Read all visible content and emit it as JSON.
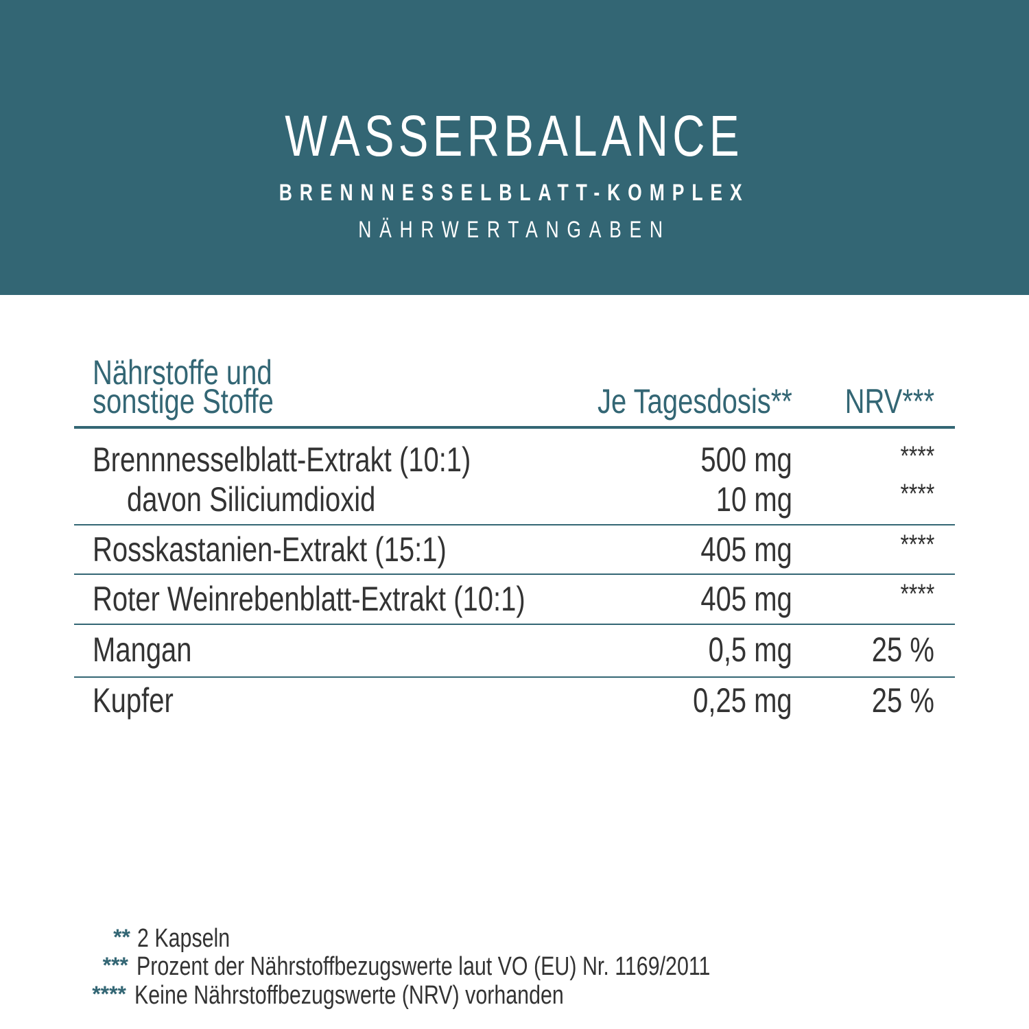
{
  "header": {
    "title": "WASSERBALANCE",
    "subtitle": "BRENNNESSELBLATT-KOMPLEX",
    "section": "NÄHRWERTANGABEN",
    "background_color": "#336674"
  },
  "table": {
    "columns": [
      "Nährstoffe und",
      "sonstige Stoffe",
      "Je Tagesdosis**",
      "NRV***"
    ],
    "rows": [
      {
        "name": "Brennnesselblatt-Extrakt (10:1)",
        "dose": "500 mg",
        "nrv": "****"
      },
      {
        "name": "davon Siliciumdioxid",
        "dose": "10 mg",
        "nrv": "****"
      },
      {
        "name": "Rosskastanien-Extrakt (15:1)",
        "dose": "405 mg",
        "nrv": "****"
      },
      {
        "name": "Roter Weinrebenblatt-Extrakt (10:1)",
        "dose": "405 mg",
        "nrv": "****"
      },
      {
        "name": "Mangan",
        "dose": "0,5 mg",
        "nrv": "25 %"
      },
      {
        "name": "Kupfer",
        "dose": "0,25 mg",
        "nrv": "25 %"
      }
    ]
  },
  "footnotes": [
    {
      "mark": "**",
      "text": "2 Kapseln"
    },
    {
      "mark": "***",
      "text": "Prozent der Nährstoffbezugswerte laut VO (EU) Nr. 1169/2011"
    },
    {
      "mark": "****",
      "text": "Keine Nährstoffbezugswerte (NRV) vorhanden"
    }
  ]
}
